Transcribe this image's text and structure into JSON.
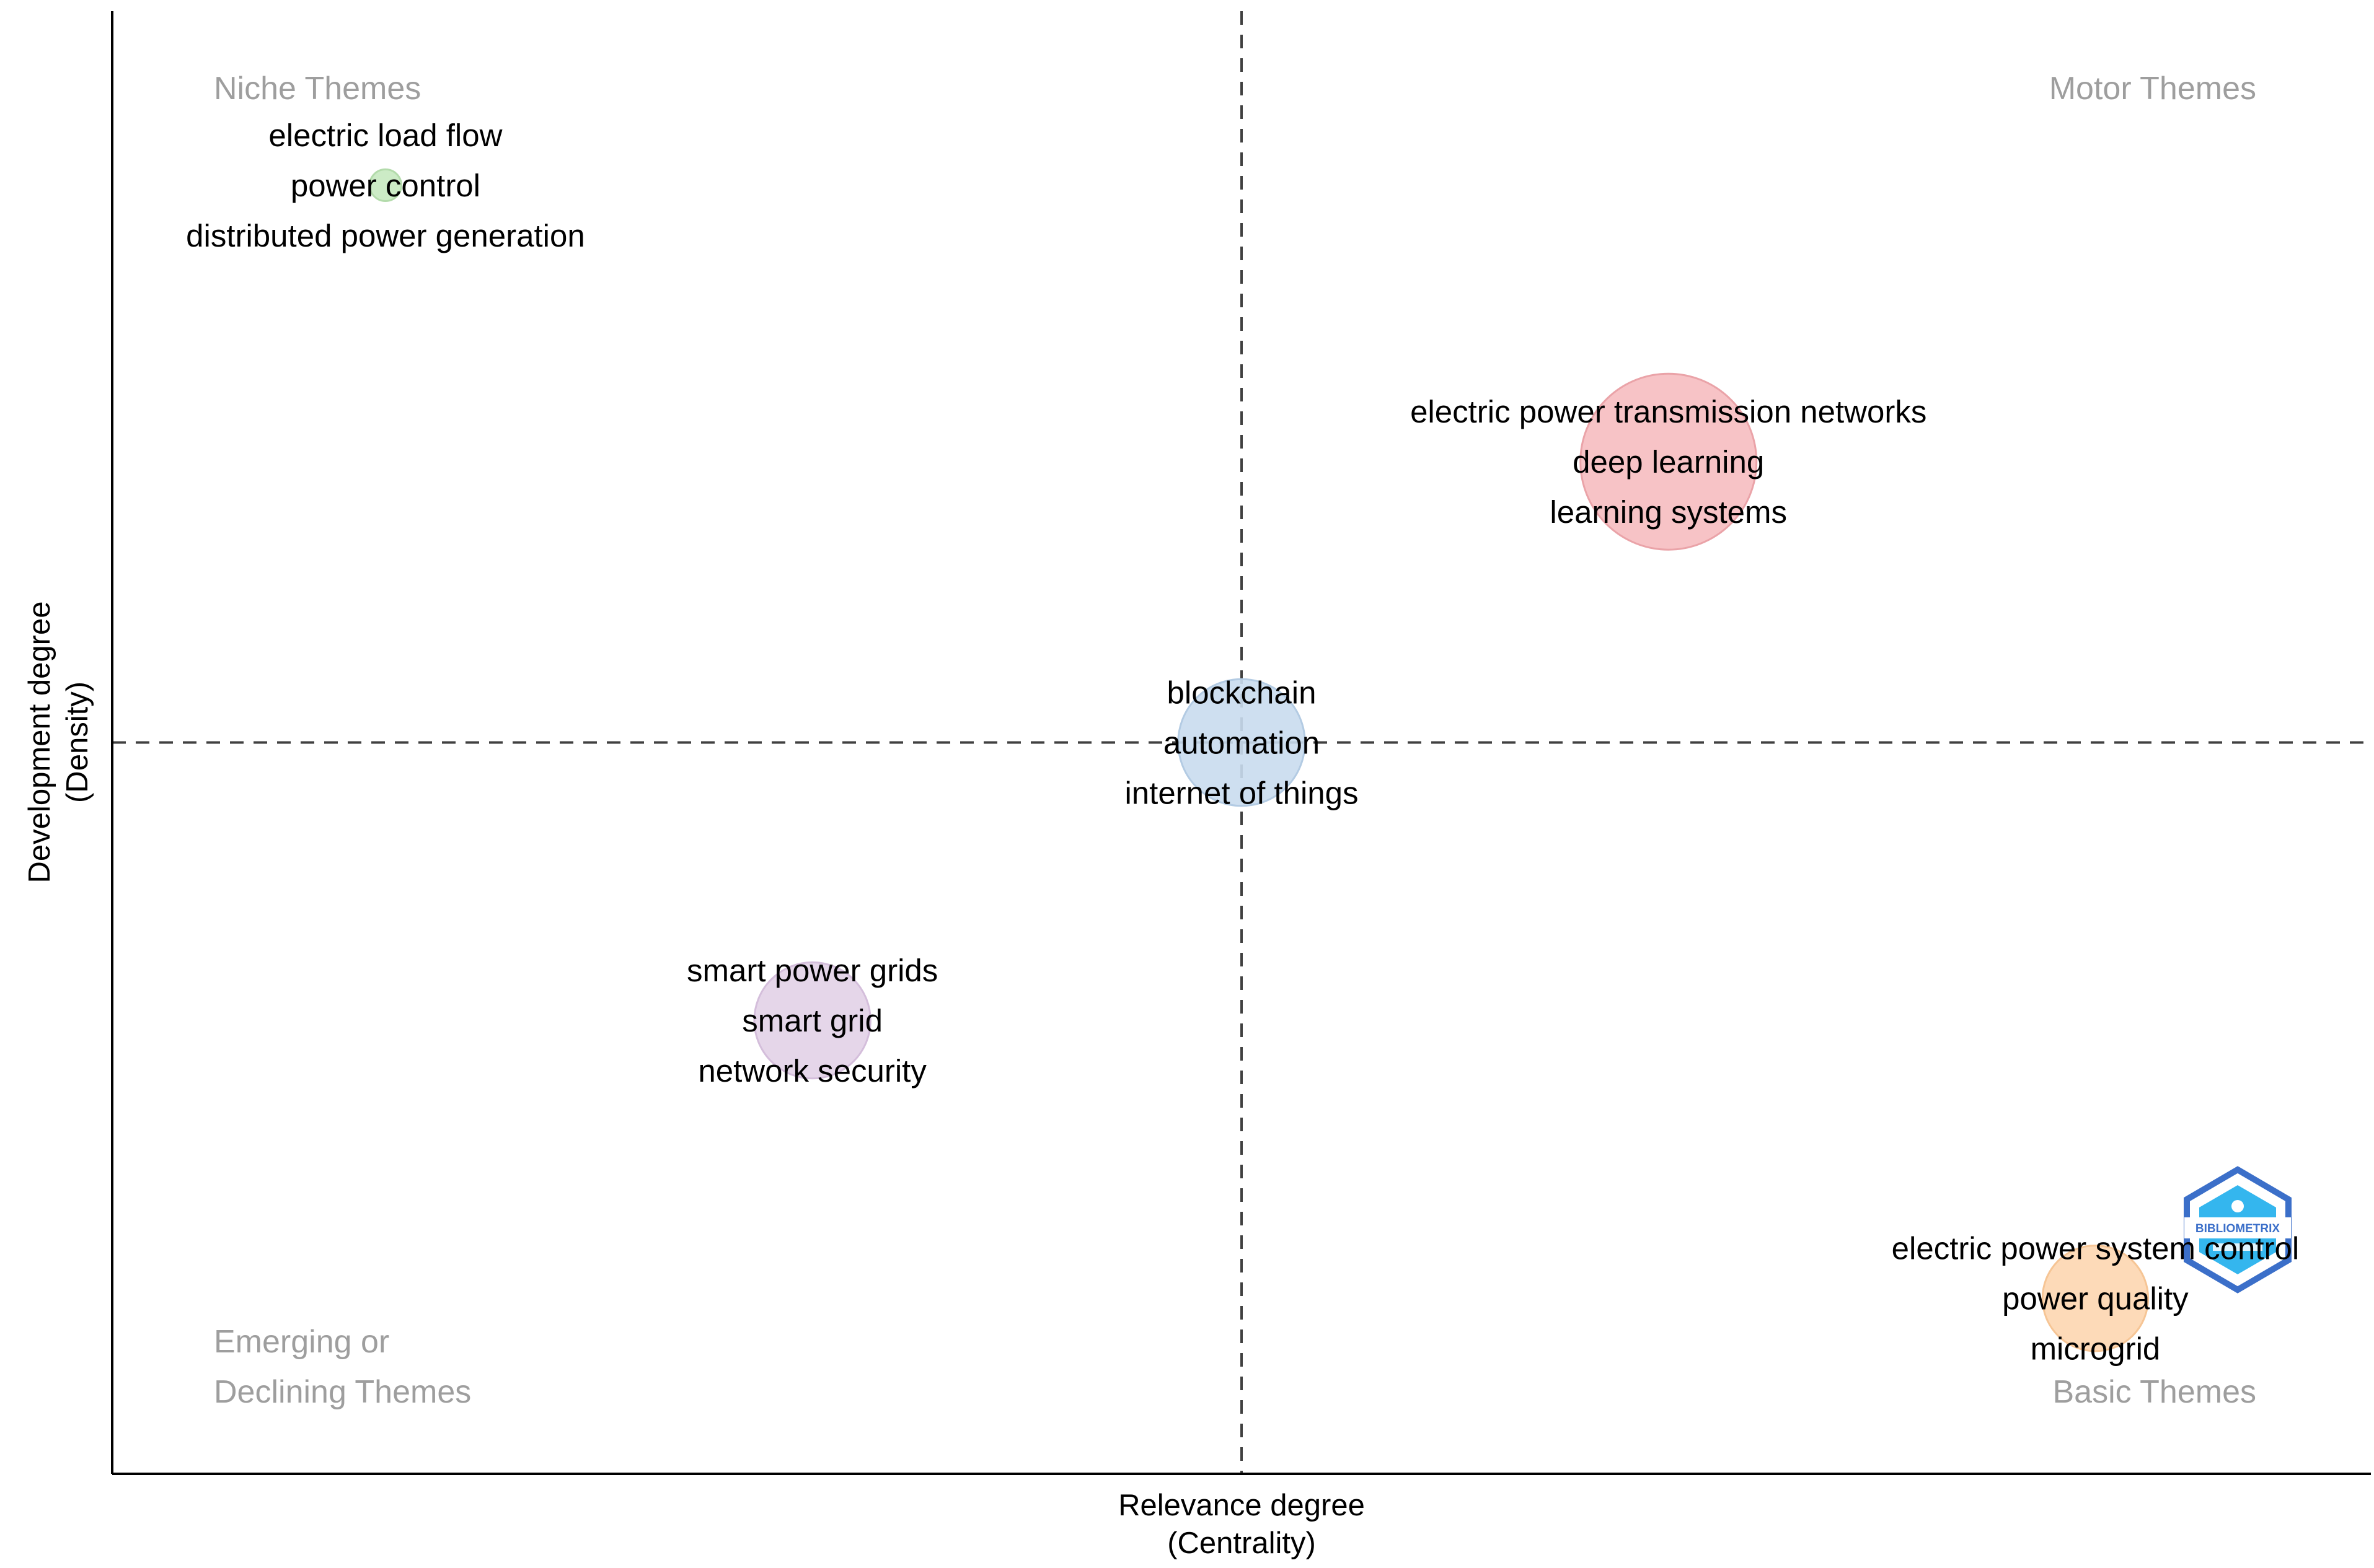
{
  "chart_data": {
    "type": "scatter",
    "subtype": "thematic-map",
    "xlabel": "Relevance degree",
    "xlabel_sub": "(Centrality)",
    "ylabel": "Development degree",
    "ylabel_sub": "(Density)",
    "xlim": [
      0,
      1
    ],
    "ylim": [
      0,
      1
    ],
    "x_ref": 0.5,
    "y_ref": 0.5,
    "quadrants": {
      "top_left": [
        "Niche Themes"
      ],
      "top_right": [
        "Motor Themes"
      ],
      "bottom_left": [
        "Emerging or",
        "Declining Themes"
      ],
      "bottom_right": [
        "Basic Themes"
      ]
    },
    "clusters": [
      {
        "name": "electric load flow",
        "x": 0.121,
        "y": 0.881,
        "size": 0.18,
        "color": "#c7e9c0",
        "stroke": "#b3dbab",
        "words": [
          "electric load flow",
          "power control",
          "distributed power generation"
        ]
      },
      {
        "name": "electric power transmission networks",
        "x": 0.689,
        "y": 0.692,
        "size": 1.0,
        "color": "#f6bcc0",
        "stroke": "#eaa3a8",
        "words": [
          "electric power transmission networks",
          "deep learning",
          "learning systems"
        ]
      },
      {
        "name": "blockchain",
        "x": 0.5,
        "y": 0.5,
        "size": 0.72,
        "color": "#c9dcee",
        "stroke": "#b3cbe3",
        "words": [
          "blockchain",
          "automation",
          "internet of things"
        ]
      },
      {
        "name": "smart power grids",
        "x": 0.31,
        "y": 0.31,
        "size": 0.66,
        "color": "#e2d1e7",
        "stroke": "#d4bedb",
        "words": [
          "smart power grids",
          "smart grid",
          "network security"
        ]
      },
      {
        "name": "electric power system control",
        "x": 0.878,
        "y": 0.12,
        "size": 0.6,
        "color": "#fdd6b0",
        "stroke": "#f6c595",
        "words": [
          "electric power system control",
          "power quality",
          "microgrid"
        ]
      }
    ]
  },
  "logo": {
    "text": "BIBLIOMETRIX",
    "color_dark": "#3b6fc9",
    "color_light": "#34b6ee"
  }
}
